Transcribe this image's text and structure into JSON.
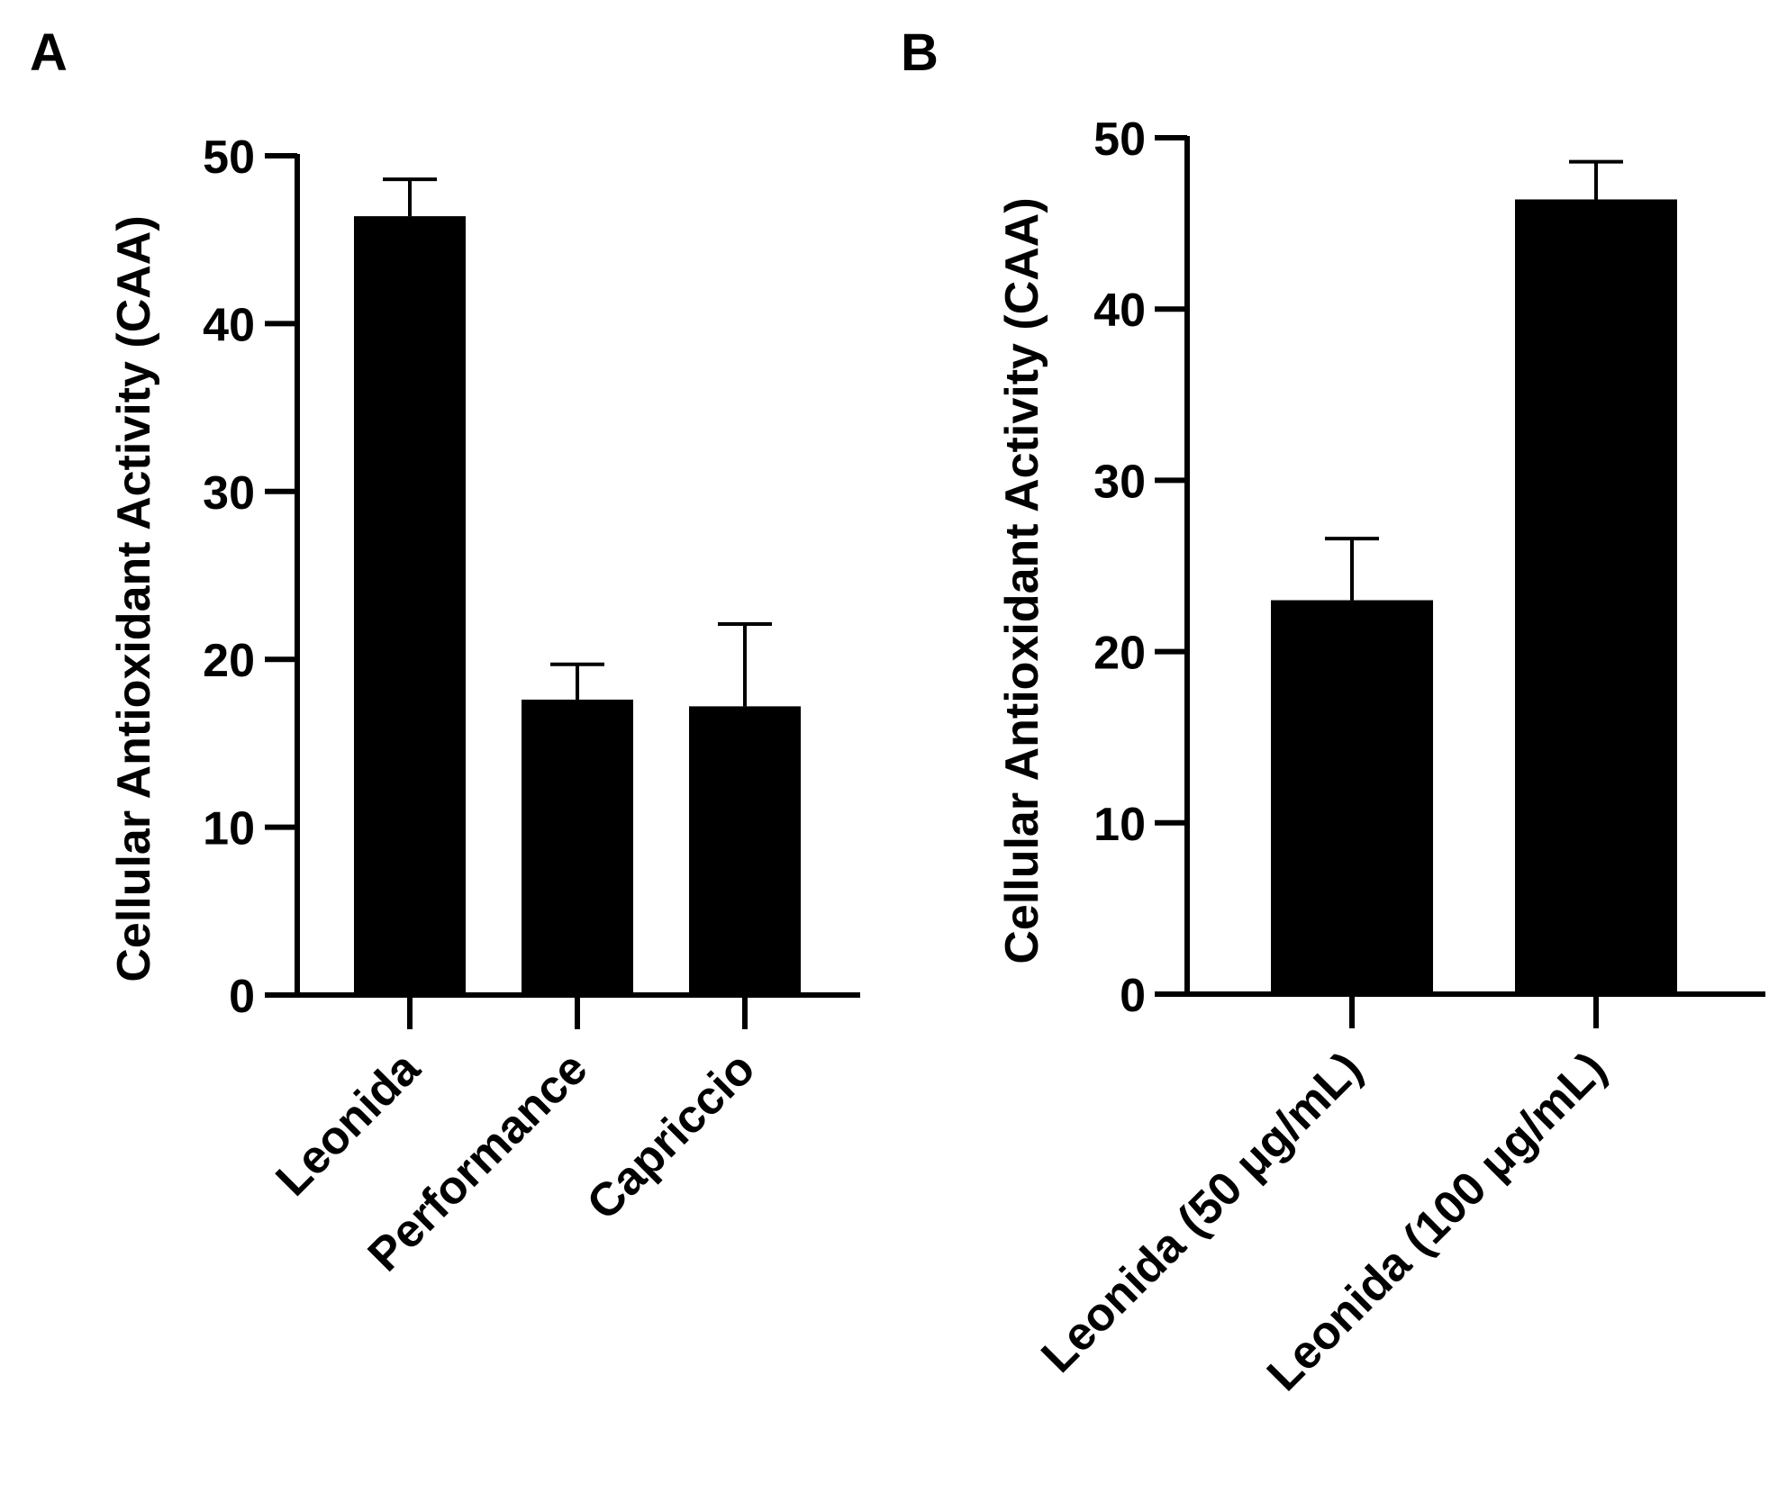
{
  "chart_data": [
    {
      "panel": "A",
      "type": "bar",
      "ylabel": "Cellular Antioxidant Activity (CAA)",
      "ylim": [
        0,
        50
      ],
      "yticks": [
        0,
        10,
        20,
        30,
        40,
        50
      ],
      "categories": [
        "Leonida",
        "Performance",
        "Capriccio"
      ],
      "values": [
        46.4,
        17.6,
        17.2
      ],
      "error_upper": [
        48.6,
        19.7,
        22.1
      ],
      "color": "#000000",
      "grid": false
    },
    {
      "panel": "B",
      "type": "bar",
      "ylabel": "Cellular Antioxidant Activity (CAA)",
      "ylim": [
        0,
        50
      ],
      "yticks": [
        0,
        10,
        20,
        30,
        40,
        50
      ],
      "categories": [
        "Leonida (50 μg/mL)",
        "Leonida (100 μg/mL)"
      ],
      "values": [
        23.0,
        46.4
      ],
      "error_upper": [
        26.6,
        48.6
      ],
      "color": "#000000",
      "grid": false
    }
  ]
}
